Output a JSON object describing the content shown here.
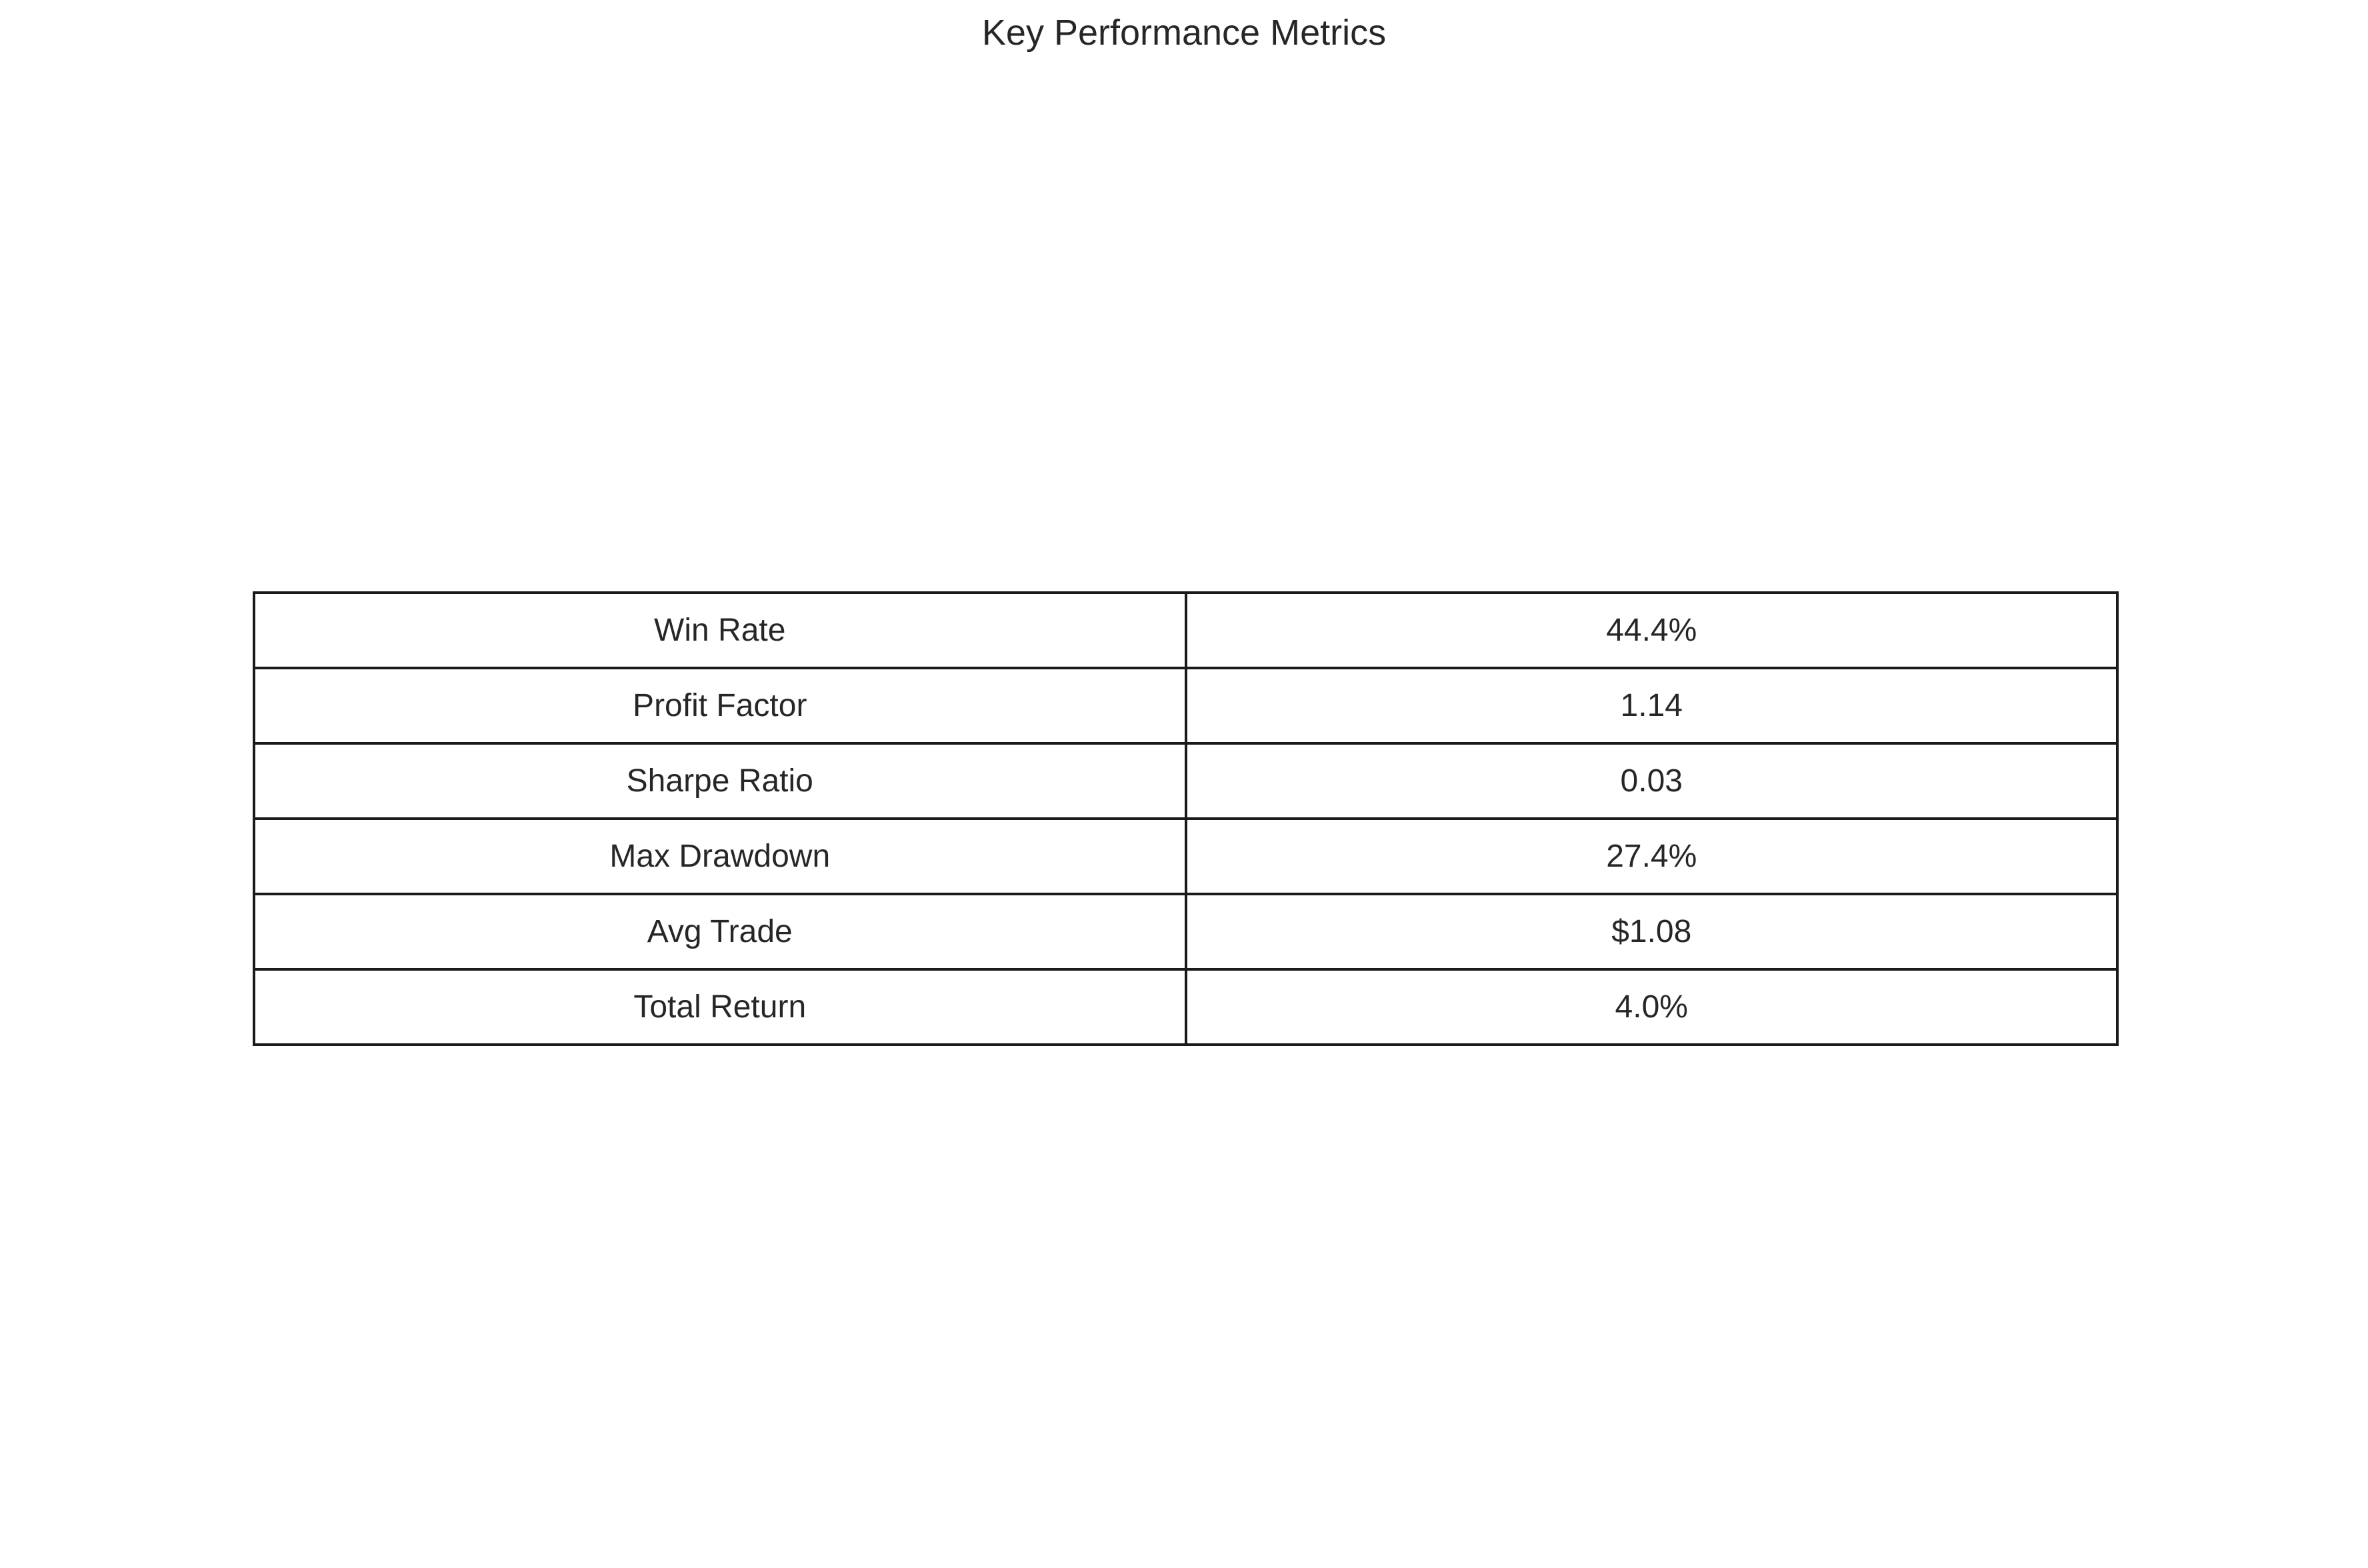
{
  "chart_data": {
    "type": "table",
    "title": "Key Performance Metrics",
    "rows": [
      {
        "label": "Win Rate",
        "value": "44.4%"
      },
      {
        "label": "Profit Factor",
        "value": "1.14"
      },
      {
        "label": "Sharpe Ratio",
        "value": "0.03"
      },
      {
        "label": "Max Drawdown",
        "value": "27.4%"
      },
      {
        "label": "Avg Trade",
        "value": "$1.08"
      },
      {
        "label": "Total Return",
        "value": "4.0%"
      }
    ]
  },
  "colors": {
    "text": "#262626",
    "border": "#1a1a1a",
    "background": "#ffffff"
  }
}
